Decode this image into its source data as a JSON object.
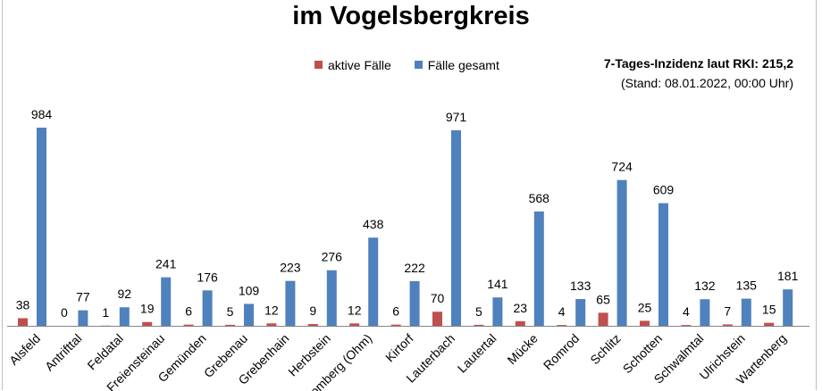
{
  "chart_data": {
    "type": "bar",
    "title": "im Vogelsbergkreis",
    "categories": [
      "Alsfeld",
      "Antrifttal",
      "Feldatal",
      "Freiensteinau",
      "Gemünden",
      "Grebenau",
      "Grebenhain",
      "Herbstein",
      "Homberg (Ohm)",
      "Kirtorf",
      "Lauterbach",
      "Lautertal",
      "Mücke",
      "Romrod",
      "Schlitz",
      "Schotten",
      "Schwalmtal",
      "Ulrichstein",
      "Wartenberg"
    ],
    "series": [
      {
        "name": "aktive Fälle",
        "color": "#c0504d",
        "values": [
          38,
          0,
          1,
          19,
          6,
          5,
          12,
          9,
          12,
          6,
          70,
          5,
          23,
          4,
          65,
          25,
          4,
          7,
          15
        ]
      },
      {
        "name": "Fälle gesamt",
        "color": "#4f81bd",
        "values": [
          984,
          77,
          92,
          241,
          176,
          109,
          223,
          276,
          438,
          222,
          971,
          141,
          568,
          133,
          724,
          609,
          132,
          135,
          181
        ]
      }
    ],
    "ylim": [
      0,
      1000
    ],
    "legend": "top-center",
    "grid": false
  },
  "info": {
    "incidence": "7-Tages-Inzidenz laut RKI: 215,2",
    "stand": "(Stand: 08.01.2022, 00:00 Uhr)"
  }
}
